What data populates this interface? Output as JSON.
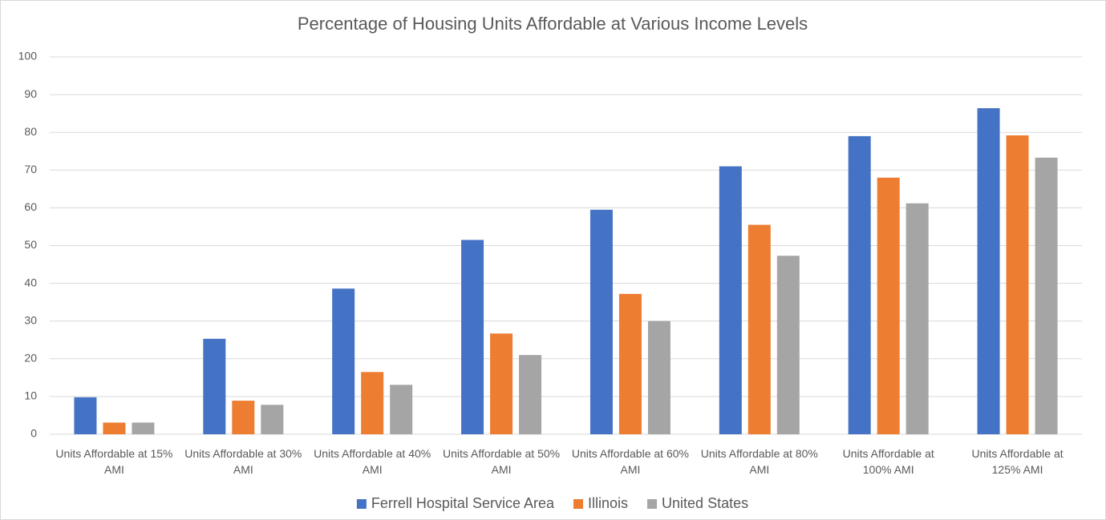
{
  "chart_data": {
    "type": "bar",
    "title": "Percentage of Housing Units Affordable at Various Income Levels",
    "categories": [
      "Units Affordable at 15% AMI",
      "Units Affordable at 30% AMI",
      "Units Affordable at 40% AMI",
      "Units Affordable at 50% AMI",
      "Units Affordable at 60% AMI",
      "Units Affordable at 80% AMI",
      "Units Affordable at 100% AMI",
      "Units Affordable at 125% AMI"
    ],
    "series": [
      {
        "name": "Ferrell Hospital Service Area",
        "color": "#4472c4",
        "values": [
          9.8,
          25.3,
          38.6,
          51.5,
          59.5,
          71,
          79,
          86.4
        ]
      },
      {
        "name": "Illinois",
        "color": "#ed7d31",
        "values": [
          3.1,
          8.9,
          16.5,
          26.7,
          37.2,
          55.5,
          68,
          79.2
        ]
      },
      {
        "name": "United States",
        "color": "#a5a5a5",
        "values": [
          3.1,
          7.8,
          13.1,
          21,
          30,
          47.3,
          61.2,
          73.3
        ]
      }
    ],
    "ylim": [
      0,
      100
    ],
    "yticks": [
      0,
      10,
      20,
      30,
      40,
      50,
      60,
      70,
      80,
      90,
      100
    ],
    "grid": true,
    "legend": "bottom"
  }
}
